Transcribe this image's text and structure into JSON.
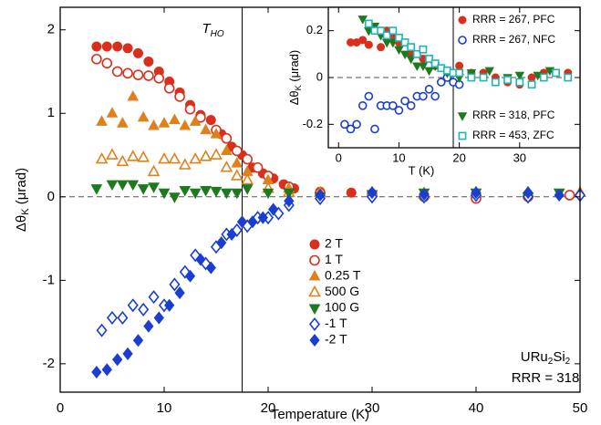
{
  "chart_data": [
    {
      "type": "scatter",
      "xlabel": "Temperature (K)",
      "ylabel": {
        "main": "Δθ",
        "sub": "K",
        "unit": " (μrad)"
      },
      "xlim": [
        0,
        50
      ],
      "ylim": [
        -2.34,
        2.27
      ],
      "xticks": [
        0,
        10,
        20,
        30,
        40,
        50
      ],
      "yticks": [
        -2,
        -1,
        0,
        1,
        2
      ],
      "vline": {
        "value": 17.5,
        "label": {
          "main": "T",
          "sub": "HO"
        }
      },
      "hline": 0,
      "annotation": {
        "formula": [
          "URu",
          "2",
          "Si",
          "2"
        ],
        "text": "RRR = 318"
      },
      "series": [
        {
          "name": "2 T",
          "color": "#d8301c",
          "marker": "circle",
          "x": [
            3.5,
            4.5,
            5.5,
            6.5,
            7.5,
            8.5,
            9.5,
            10.5,
            11.5,
            12.5,
            13.5,
            14.5,
            15.5,
            16.5,
            17.5,
            18.5,
            19.5,
            20.5,
            21.5,
            22.5,
            25,
            28,
            30,
            35,
            40,
            45,
            49
          ],
          "values": [
            1.8,
            1.8,
            1.8,
            1.78,
            1.72,
            1.62,
            1.5,
            1.38,
            1.25,
            1.1,
            0.98,
            0.92,
            0.75,
            0.6,
            0.5,
            0.35,
            0.28,
            0.22,
            0.15,
            0.1,
            0.06,
            0.05,
            0.04,
            0.02,
            0.03,
            0.02,
            0.02
          ]
        },
        {
          "name": "1 T",
          "color": "#d8301c",
          "marker": "circle-open",
          "x": [
            3.5,
            4.5,
            5.5,
            6.5,
            7.5,
            8.5,
            9.5,
            10.5,
            11.5,
            12.5,
            13.5,
            15,
            16,
            17,
            18,
            19,
            20,
            22,
            25,
            30,
            35,
            40,
            45,
            49
          ],
          "values": [
            1.65,
            1.6,
            1.5,
            1.48,
            1.46,
            1.45,
            1.42,
            1.3,
            1.2,
            1.05,
            0.95,
            0.8,
            0.7,
            0.55,
            0.45,
            0.35,
            0.25,
            0.12,
            0.05,
            0.02,
            0,
            -0.02,
            0,
            0.02
          ]
        },
        {
          "name": "0.25 T",
          "color": "#e0801c",
          "marker": "triangle",
          "x": [
            4,
            5,
            6,
            7,
            8,
            9,
            10,
            11,
            12,
            13,
            14,
            15,
            16,
            17,
            18,
            20,
            22,
            25,
            30,
            35,
            40,
            45
          ],
          "values": [
            0.9,
            1,
            0.88,
            1.2,
            0.95,
            0.85,
            0.88,
            0.92,
            0.85,
            0.9,
            0.8,
            0.75,
            0.55,
            0.4,
            0.3,
            0.2,
            0.1,
            0.05,
            0.05,
            0.05,
            0.05,
            0.03
          ]
        },
        {
          "name": "500 G",
          "color": "#e0801c",
          "marker": "triangle-open",
          "x": [
            4,
            5,
            6,
            7,
            8,
            9,
            10,
            11,
            12,
            13,
            14,
            15,
            16,
            17,
            18,
            20,
            22,
            25,
            30,
            35,
            40,
            45,
            50
          ],
          "values": [
            0.45,
            0.5,
            0.42,
            0.48,
            0.47,
            0.3,
            0.45,
            0.45,
            0.38,
            0.45,
            0.48,
            0.5,
            0.35,
            0.25,
            0.2,
            0.1,
            0.05,
            0.05,
            0.05,
            0.03,
            0.05,
            0.05,
            0.05
          ]
        },
        {
          "name": "100 G",
          "color": "#1e7a1e",
          "marker": "triangle-down",
          "x": [
            3.5,
            5,
            6,
            7,
            8,
            9,
            10,
            11,
            12,
            13,
            14,
            15,
            16,
            17,
            18,
            20,
            22,
            25,
            30,
            35,
            40,
            45,
            48
          ],
          "values": [
            0.1,
            0.15,
            0.15,
            0.15,
            0.1,
            0.12,
            0.05,
            0,
            0.08,
            0.05,
            0.08,
            0.07,
            0.05,
            0.05,
            0.1,
            0.05,
            0.05,
            0,
            0.03,
            0.05,
            0.05,
            0,
            0.05
          ]
        },
        {
          "name": "-1 T",
          "color": "#1a3fd0",
          "marker": "diamond-open",
          "x": [
            4,
            5,
            6,
            7,
            8,
            9,
            10,
            11,
            12,
            13,
            14,
            15,
            16,
            17,
            18,
            19,
            20,
            21,
            22,
            25,
            30,
            35,
            40,
            45,
            50
          ],
          "values": [
            -1.6,
            -1.45,
            -1.45,
            -1.3,
            -1.35,
            -1.2,
            -1.3,
            -1.05,
            -0.9,
            -0.7,
            -0.8,
            -0.6,
            -0.45,
            -0.4,
            -0.35,
            -0.25,
            -0.25,
            -0.2,
            -0.1,
            -0.02,
            0,
            0,
            0.02,
            0,
            0.02
          ]
        },
        {
          "name": "-2 T",
          "color": "#1a3fd0",
          "marker": "diamond",
          "x": [
            3.5,
            4.5,
            5.5,
            6.5,
            7.5,
            8.5,
            9.5,
            10.5,
            11.5,
            12.5,
            13.5,
            14.5,
            15.5,
            16.5,
            17.5,
            18.5,
            19.5,
            20.5,
            22,
            25,
            30,
            35,
            40,
            45,
            48
          ],
          "values": [
            -2.1,
            -2.07,
            -1.95,
            -1.88,
            -1.72,
            -1.55,
            -1.45,
            -1.3,
            -1.15,
            -0.95,
            -0.75,
            -0.85,
            -0.55,
            -0.45,
            -0.3,
            -0.3,
            -0.25,
            -0.15,
            -0.05,
            0.02,
            0.05,
            0.03,
            0.05,
            0.05,
            0.02
          ]
        }
      ]
    },
    {
      "type": "scatter",
      "xlabel": "T (K)",
      "ylabel": {
        "main": "Δθ",
        "sub": "K",
        "unit": " (μrad)"
      },
      "xlim": [
        -1.7,
        40
      ],
      "ylim": [
        -0.3,
        0.3
      ],
      "xticks": [
        0,
        10,
        20,
        30
      ],
      "yticks": [
        -0.2,
        0,
        0.2
      ],
      "vline": {
        "value": 19
      },
      "hline": 0,
      "series": [
        {
          "name": "RRR = 267, PFC",
          "color": "#d8301c",
          "marker": "circle",
          "x": [
            2,
            3,
            4,
            5,
            6,
            7,
            8,
            9,
            10,
            12,
            14,
            16,
            18,
            20,
            22,
            24,
            26,
            28,
            30,
            32,
            34,
            36,
            38
          ],
          "values": [
            0.15,
            0.15,
            0.16,
            0.14,
            0.2,
            0.13,
            0.2,
            0.18,
            0.15,
            0.1,
            0.08,
            0.05,
            0.03,
            0.05,
            0.02,
            0.02,
            0,
            -0.02,
            -0.03,
            0,
            0.02,
            0.02,
            0.02
          ]
        },
        {
          "name": "RRR = 267, NFC",
          "color": "#1a3fd0",
          "marker": "circle-open",
          "x": [
            1,
            2,
            3,
            4,
            5,
            6,
            7,
            8,
            9,
            10,
            11,
            12,
            13,
            14,
            15,
            16,
            17,
            18,
            19,
            20
          ],
          "values": [
            -0.2,
            -0.22,
            -0.2,
            -0.12,
            -0.08,
            -0.22,
            -0.12,
            -0.12,
            -0.12,
            -0.14,
            -0.1,
            -0.12,
            -0.08,
            -0.08,
            -0.05,
            -0.08,
            -0.02,
            0,
            -0.02,
            -0.03
          ]
        },
        {
          "name": "RRR = 318, PFC",
          "color": "#1e7a1e",
          "marker": "triangle-down",
          "x": [
            4,
            5,
            6,
            7,
            8,
            9,
            10,
            11,
            12,
            13,
            14,
            15,
            16,
            18,
            20,
            22,
            25,
            28,
            30,
            33,
            35
          ],
          "values": [
            0.25,
            0.2,
            0.22,
            0.18,
            0.15,
            0.15,
            0.12,
            0.1,
            0.08,
            0.05,
            0.05,
            0.03,
            0.05,
            0.02,
            0,
            0.02,
            0.03,
            0,
            0.01,
            0.01,
            0.03
          ]
        },
        {
          "name": "RRR = 453, ZFC",
          "color": "#1fb5b5",
          "marker": "square-open",
          "x": [
            5,
            6,
            7,
            8,
            9,
            10,
            11,
            12,
            13,
            14,
            15,
            16,
            17,
            18,
            19,
            20,
            22,
            24,
            26,
            28,
            30,
            32,
            34,
            36,
            38
          ],
          "values": [
            0.23,
            0.2,
            0.2,
            0.18,
            0.2,
            0.17,
            0.15,
            0.13,
            0.1,
            0.12,
            0.08,
            0.06,
            0.04,
            0.03,
            0.02,
            0.02,
            0,
            0,
            -0.02,
            -0.01,
            -0.02,
            -0.03,
            0,
            0.02,
            0
          ]
        }
      ]
    }
  ]
}
